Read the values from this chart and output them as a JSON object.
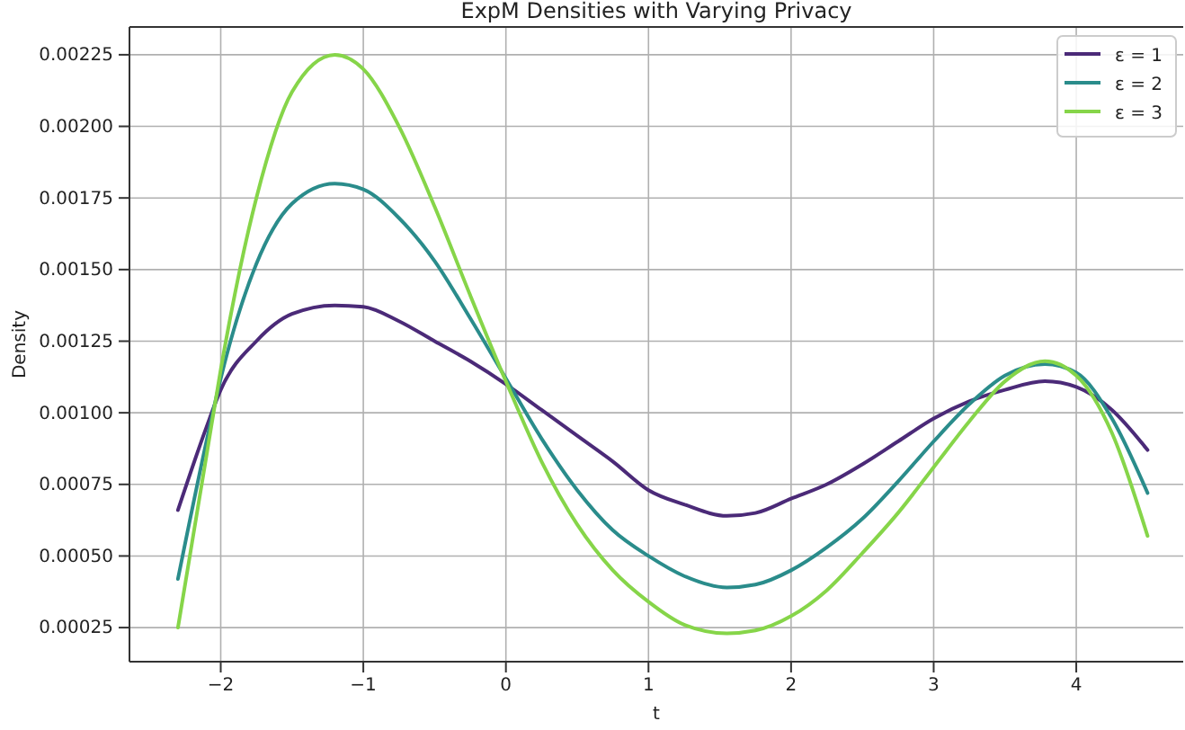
{
  "chart_data": {
    "type": "line",
    "title": "ExpM Densities with Varying Privacy",
    "xlabel": "t",
    "ylabel": "Density",
    "xlim": [
      -2.64,
      4.75
    ],
    "ylim": [
      0.000131,
      0.002347
    ],
    "xticks": [
      {
        "value": -2,
        "label": "−2"
      },
      {
        "value": -1,
        "label": "−1"
      },
      0,
      1,
      2,
      3,
      4
    ],
    "yticks": [
      {
        "value": 0.00025,
        "label": "0.00025"
      },
      {
        "value": 0.0005,
        "label": "0.00050"
      },
      {
        "value": 0.00075,
        "label": "0.00075"
      },
      {
        "value": 0.001,
        "label": "0.00100"
      },
      {
        "value": 0.00125,
        "label": "0.00125"
      },
      {
        "value": 0.0015,
        "label": "0.00150"
      },
      {
        "value": 0.00175,
        "label": "0.00175"
      },
      {
        "value": 0.002,
        "label": "0.00200"
      },
      {
        "value": 0.00225,
        "label": "0.00225"
      }
    ],
    "grid": true,
    "legend": "top right",
    "marker": "none",
    "line_style": "solid",
    "x": [
      -2.3,
      -2.1,
      -2.0,
      -1.75,
      -1.5,
      -1.2,
      -1.0,
      -0.75,
      -0.5,
      -0.25,
      0,
      0.25,
      0.5,
      0.75,
      1.0,
      1.25,
      1.55,
      1.75,
      2.0,
      2.25,
      2.5,
      2.75,
      3.0,
      3.25,
      3.5,
      3.78,
      4.0,
      4.25,
      4.5
    ],
    "series": [
      {
        "name": "ε = 1",
        "color": "#4b2a78",
        "values": [
          0.00066,
          0.00095,
          0.00108,
          0.00125,
          0.001345,
          0.001375,
          0.00137,
          0.00132,
          0.00125,
          0.00118,
          0.0011,
          0.00101,
          0.00092,
          0.00083,
          0.00073,
          0.00068,
          0.00064,
          0.00065,
          0.0007,
          0.00075,
          0.00082,
          0.0009,
          0.00098,
          0.00104,
          0.00108,
          0.00111,
          0.00109,
          0.00101,
          0.00087
        ]
      },
      {
        "name": "ε = 2",
        "color": "#2a8c8b",
        "values": [
          0.00042,
          0.0009,
          0.00112,
          0.00152,
          0.00173,
          0.0018,
          0.00178,
          0.00168,
          0.00153,
          0.00133,
          0.00112,
          0.00091,
          0.00073,
          0.00059,
          0.0005,
          0.00043,
          0.00039,
          0.0004,
          0.00045,
          0.00053,
          0.00063,
          0.00076,
          0.0009,
          0.00103,
          0.00113,
          0.00117,
          0.00114,
          0.00098,
          0.00072
        ]
      },
      {
        "name": "ε = 3",
        "color": "#86d549",
        "values": [
          0.00025,
          0.00085,
          0.00115,
          0.00175,
          0.00212,
          0.00225,
          0.0022,
          0.002,
          0.00172,
          0.00141,
          0.00111,
          0.00083,
          0.00061,
          0.00045,
          0.00034,
          0.00026,
          0.00023,
          0.00024,
          0.00029,
          0.00038,
          0.00051,
          0.00065,
          0.00081,
          0.00097,
          0.00111,
          0.00118,
          0.00113,
          0.00093,
          0.00057
        ]
      }
    ]
  }
}
